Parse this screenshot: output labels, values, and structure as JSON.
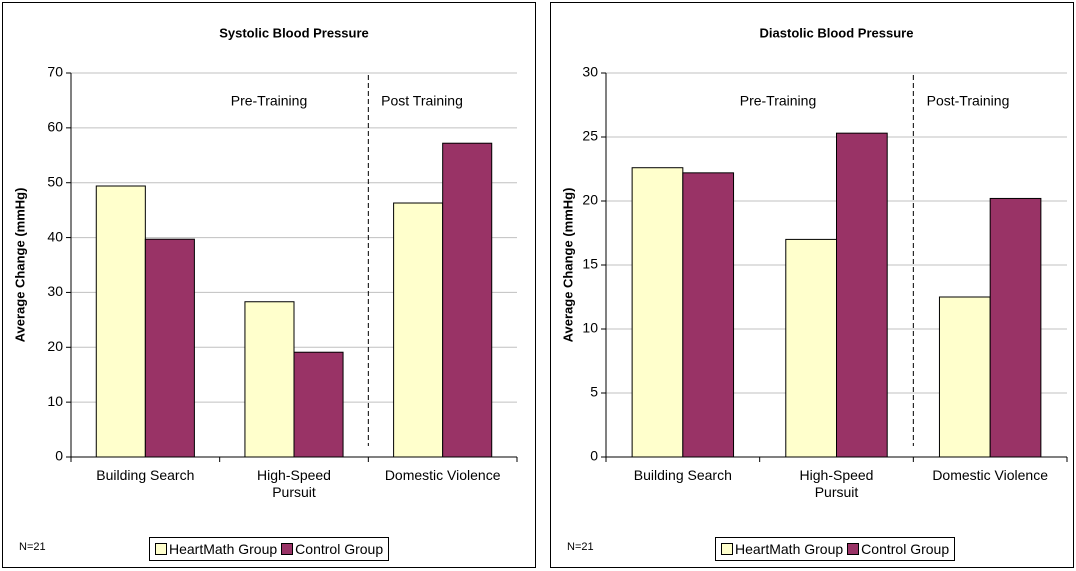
{
  "chart_data": [
    {
      "type": "bar",
      "title": "Systolic Blood Pressure",
      "y_label": "Average Change (mmHg)",
      "categories": [
        "Building Search",
        "High-Speed Pursuit",
        "Domestic Violence"
      ],
      "series": [
        {
          "name": "HeartMath Group",
          "color": "#ffffcc",
          "values": [
            49.4,
            28.3,
            46.3
          ]
        },
        {
          "name": "Control Group",
          "color": "#993366",
          "values": [
            39.7,
            19.1,
            57.2
          ]
        }
      ],
      "ylim": [
        0,
        70
      ],
      "yticks": [
        0,
        10,
        20,
        30,
        40,
        50,
        60,
        70
      ],
      "grid": true,
      "annotations": [
        "Pre-Training",
        "Post Training"
      ],
      "note": "N=21",
      "legend": "bottom"
    },
    {
      "type": "bar",
      "title": "Diastolic Blood Pressure",
      "y_label": "Average Change (mmHg)",
      "categories": [
        "Building Search",
        "High-Speed Pursuit",
        "Domestic Violence"
      ],
      "series": [
        {
          "name": "HeartMath Group",
          "color": "#ffffcc",
          "values": [
            22.6,
            17.0,
            12.5
          ]
        },
        {
          "name": "Control Group",
          "color": "#993366",
          "values": [
            22.2,
            25.3,
            20.2
          ]
        }
      ],
      "ylim": [
        0,
        30
      ],
      "yticks": [
        0,
        5,
        10,
        15,
        20,
        25,
        30
      ],
      "grid": true,
      "annotations": [
        "Pre-Training",
        "Post-Training"
      ],
      "note": "N=21",
      "legend": "bottom"
    }
  ]
}
